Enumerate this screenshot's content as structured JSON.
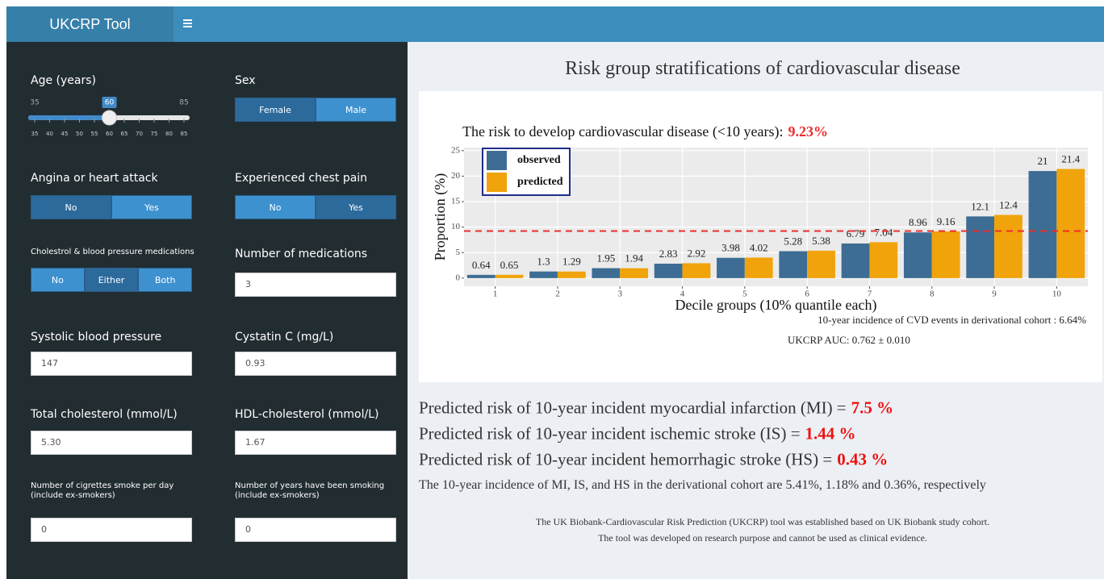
{
  "header": {
    "title": "UKCRP Tool"
  },
  "sidebar": {
    "controls": [
      {
        "type": "slider",
        "label": "Age (years)",
        "min": 35,
        "max": 85,
        "value": 60,
        "ticks": [
          35,
          40,
          45,
          50,
          55,
          60,
          65,
          70,
          75,
          80,
          85
        ]
      },
      {
        "type": "buttons",
        "label": "Sex",
        "options": [
          "Female",
          "Male"
        ],
        "selected": "Female"
      },
      {
        "type": "buttons",
        "label": "Angina or heart attack",
        "options": [
          "No",
          "Yes"
        ],
        "selected": "No"
      },
      {
        "type": "buttons",
        "label": "Experienced chest pain",
        "options": [
          "No",
          "Yes"
        ],
        "selected": "Yes"
      },
      {
        "type": "buttons",
        "label": "Cholestrol & blood pressure medications",
        "options": [
          "No",
          "Either",
          "Both"
        ],
        "selected": "Either"
      },
      {
        "type": "input",
        "label": "Number of medications",
        "value": "3"
      },
      {
        "type": "input",
        "label": "Systolic blood pressure",
        "value": "147"
      },
      {
        "type": "input",
        "label": "Cystatin C (mg/L)",
        "value": "0.93"
      },
      {
        "type": "input",
        "label": "Total cholesterol (mmol/L)",
        "value": "5.30"
      },
      {
        "type": "input",
        "label": "HDL-cholesterol (mmol/L)",
        "value": "1.67"
      },
      {
        "type": "input",
        "label": "Number of cigrettes smoke per day (include ex-smokers)",
        "value": "0"
      },
      {
        "type": "input",
        "label": "Number of years have been smoking (include ex-smokers)",
        "value": "0"
      }
    ]
  },
  "main": {
    "title": "Risk group stratifications of cardiovascular disease",
    "results": [
      {
        "text": "Predicted risk of 10-year incident myocardial infarction (MI) =",
        "value": "7.5 %"
      },
      {
        "text": "Predicted risk of 10-year incident ischemic stroke (IS) =",
        "value": "1.44 %"
      },
      {
        "text": "Predicted risk of 10-year incident hemorrhagic stroke (HS) =",
        "value": "0.43 %"
      }
    ],
    "note": "The 10-year incidence of MI, IS, and HS in the derivational cohort are 5.41%, 1.18% and 0.36%, respectively",
    "footer": [
      "The UK Biobank-Cardiovascular Risk Prediction (UKCRP) tool was established based on UK Biobank study cohort.",
      "The tool was developed on research purpose and cannot be used as clinical evidence."
    ]
  },
  "chart_data": {
    "type": "bar",
    "title": "The risk to develop cardiovascular disease (<10 years):",
    "highlight": "9.23%",
    "reference_line": 9.23,
    "reference_color": "#ee2c2c",
    "x_label": "Decile groups (10% quantile each)",
    "y_label": "Proportion (%)",
    "categories": [
      "1",
      "2",
      "3",
      "4",
      "5",
      "6",
      "7",
      "8",
      "9",
      "10"
    ],
    "series": [
      {
        "name": "observed",
        "color": "#3d6d94",
        "values": [
          0.64,
          1.3,
          1.95,
          2.83,
          3.98,
          5.28,
          6.79,
          8.96,
          12.1,
          21
        ]
      },
      {
        "name": "predicted",
        "color": "#f0a30a",
        "values": [
          0.65,
          1.29,
          1.94,
          2.92,
          4.02,
          5.38,
          7.04,
          9.16,
          12.4,
          21.4
        ]
      }
    ],
    "ylim": [
      -1.6,
      25.6
    ],
    "yticks": [
      0,
      5,
      10,
      15,
      20,
      25
    ],
    "grid": true,
    "legend": "top-left",
    "annotations": [
      "10-year incidence of CVD events in derivational cohort : 6.64%",
      "UKCRP AUC: 0.762 ± 0.010"
    ]
  }
}
